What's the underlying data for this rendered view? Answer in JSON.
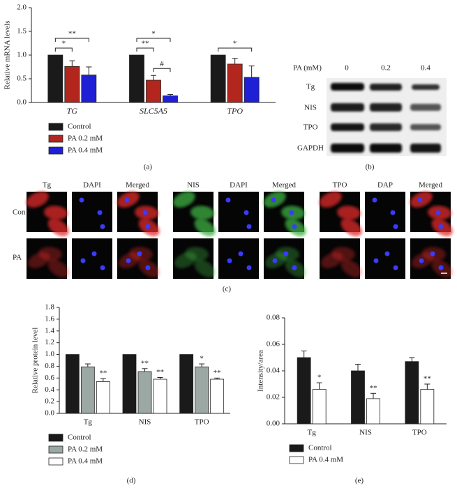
{
  "chart_data": [
    {
      "type": "bar",
      "panel_label": "(a)",
      "y_label": "Relative mRNA levels",
      "categories": [
        "TG",
        "SLC5A5",
        "TPO"
      ],
      "series": [
        {
          "name": "Control",
          "color": "#1a1a1a",
          "values": [
            1,
            1,
            1
          ]
        },
        {
          "name": "PA 0.2 mM",
          "color": "#b3261e",
          "values": [
            0.76,
            0.47,
            0.81
          ],
          "errors": [
            0.12,
            0.1,
            0.12
          ]
        },
        {
          "name": "PA 0.4 mM",
          "color": "#1f1fd6",
          "values": [
            0.58,
            0.14,
            0.53
          ],
          "errors": [
            0.17,
            0.03,
            0.24
          ]
        }
      ],
      "ylim": [
        0,
        2
      ],
      "yticks": [
        {
          "value": 0,
          "label": "0.0"
        },
        0.5,
        {
          "value": 1,
          "label": "1.0"
        },
        1.5,
        {
          "value": 2,
          "label": "2.0"
        }
      ],
      "brackets": [
        {
          "category": "TG",
          "from": "Control",
          "to": "PA 0.2 mM",
          "label": "*"
        },
        {
          "category": "TG",
          "from": "Control",
          "to": "PA 0.4 mM",
          "label": "**"
        },
        {
          "category": "SLC5A5",
          "from": "Control",
          "to": "PA 0.2 mM",
          "label": "**"
        },
        {
          "category": "SLC5A5",
          "from": "Control",
          "to": "PA 0.4 mM",
          "label": "*"
        },
        {
          "category": "SLC5A5",
          "from": "PA 0.2 mM",
          "to": "PA 0.4 mM",
          "label": "#"
        },
        {
          "category": "TPO",
          "from": "Control",
          "to": "PA 0.4 mM",
          "label": "*"
        }
      ]
    },
    {
      "type": "bar",
      "panel_label": "(d)",
      "y_label": "Relative protein level",
      "categories": [
        "Tg",
        "NIS",
        "TPO"
      ],
      "series": [
        {
          "name": "Control",
          "color": "#1a1a1a",
          "values": [
            1,
            1,
            1
          ]
        },
        {
          "name": "PA 0.2 mM",
          "color": "#9ba8a4",
          "values": [
            0.79,
            0.71,
            0.79
          ],
          "errors": [
            0.05,
            0.05,
            0.05
          ],
          "significance": [
            null,
            "**",
            "*"
          ]
        },
        {
          "name": "PA 0.4 mM",
          "color": "#ffffff",
          "values": [
            0.54,
            0.58,
            0.58
          ],
          "errors": [
            0.05,
            0.03,
            0.02
          ],
          "significance": [
            "**",
            "**",
            "**"
          ]
        }
      ],
      "ylim": [
        0,
        1.8
      ],
      "yticks": [
        {
          "value": 0,
          "label": "0.0"
        },
        0.2,
        0.4,
        0.6,
        0.8,
        {
          "value": 1,
          "label": "1.0"
        },
        1.2,
        1.4,
        1.6,
        1.8
      ]
    },
    {
      "type": "bar",
      "panel_label": "(e)",
      "y_label": "Intensity/area",
      "categories": [
        "Tg",
        "NIS",
        "TPO"
      ],
      "series": [
        {
          "name": "Control",
          "color": "#1a1a1a",
          "values": [
            0.05,
            0.04,
            0.047
          ],
          "errors": [
            0.005,
            0.005,
            0.003
          ]
        },
        {
          "name": "PA 0.4 mM",
          "color": "#ffffff",
          "values": [
            0.026,
            0.019,
            0.026
          ],
          "errors": [
            0.005,
            0.004,
            0.004
          ],
          "significance": [
            "*",
            "**",
            "**"
          ]
        }
      ],
      "ylim": [
        0,
        0.08
      ],
      "yticks": [
        {
          "value": 0,
          "label": "0.00"
        },
        0.02,
        0.04,
        0.06,
        0.08
      ]
    }
  ],
  "blot": {
    "panel_label": "(b)",
    "header": "PA (mM)",
    "doses": [
      "0",
      "0.2",
      "0.4"
    ],
    "rows": [
      "Tg",
      "NIS",
      "TPO",
      "GAPDH"
    ]
  },
  "staining": {
    "panel_label": "(c)",
    "rows": [
      "Con",
      "PA"
    ],
    "groups": [
      {
        "columns": [
          "Tg",
          "DAPI",
          "Merged"
        ]
      },
      {
        "columns": [
          "NIS",
          "DAPI",
          "Merged"
        ]
      },
      {
        "columns": [
          "TPO",
          "DAP",
          "Merged"
        ]
      }
    ]
  }
}
